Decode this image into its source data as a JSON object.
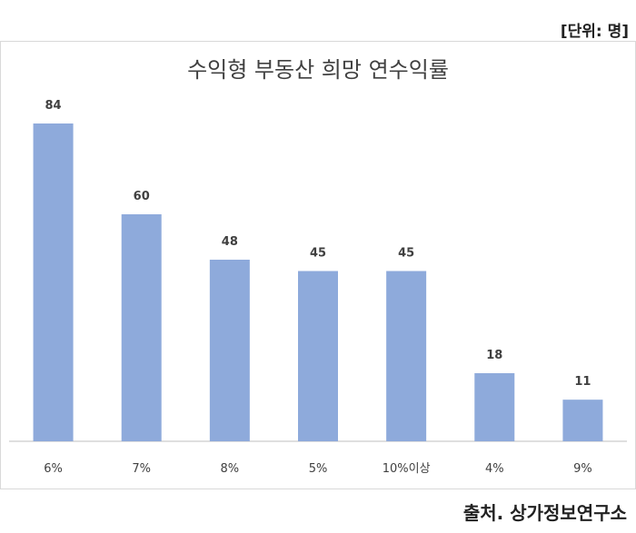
{
  "unit_label": "[단위: 명]",
  "source_label": "출처. 상가정보연구소",
  "chart_data": {
    "type": "bar",
    "title": "수익형 부동산 희망 연수익률",
    "categories": [
      "6%",
      "7%",
      "8%",
      "5%",
      "10%이상",
      "4%",
      "9%"
    ],
    "values": [
      84,
      60,
      48,
      45,
      45,
      18,
      11
    ],
    "ylim": [
      0,
      84
    ],
    "grid": false,
    "bar_color": "#8eaadb",
    "axis_color": "#bfbfbf",
    "label_color": "#404040"
  }
}
